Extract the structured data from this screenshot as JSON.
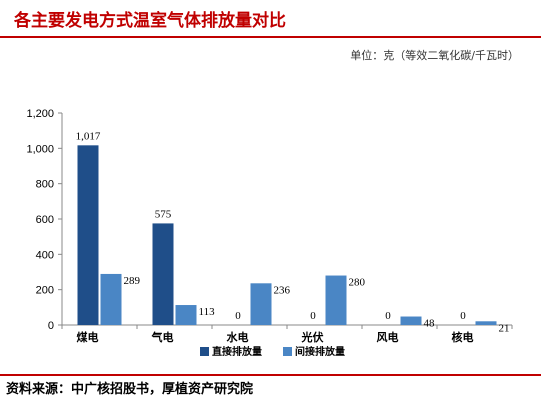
{
  "title": "各主要发电方式温室气体排放量对比",
  "unit_note": "单位：克（等效二氧化碳/千瓦时）",
  "source": "资料来源：中广核招股书，厚植资产研究院",
  "colors": {
    "accent": "#c00000",
    "direct": "#1f4e89",
    "indirect": "#4a86c5"
  },
  "chart_data": {
    "type": "bar",
    "title": "",
    "xlabel": "",
    "ylabel": "",
    "ylim": [
      0,
      1200
    ],
    "yticks": [
      "0",
      "200",
      "400",
      "600",
      "800",
      "1,000",
      "1,200"
    ],
    "categories": [
      "煤电",
      "气电",
      "水电",
      "光伏",
      "风电",
      "核电"
    ],
    "series": [
      {
        "name": "直接排放量",
        "values": [
          1017,
          575,
          0,
          0,
          0,
          0
        ],
        "labels": [
          "1,017",
          "575",
          "0",
          "0",
          "0",
          "0"
        ],
        "color": "#1f4e89"
      },
      {
        "name": "间接排放量",
        "values": [
          289,
          113,
          236,
          280,
          48,
          21
        ],
        "labels": [
          "289",
          "113",
          "236",
          "280",
          "48",
          "21"
        ],
        "color": "#4a86c5"
      }
    ],
    "legend": "bottom-center",
    "grid": false
  }
}
